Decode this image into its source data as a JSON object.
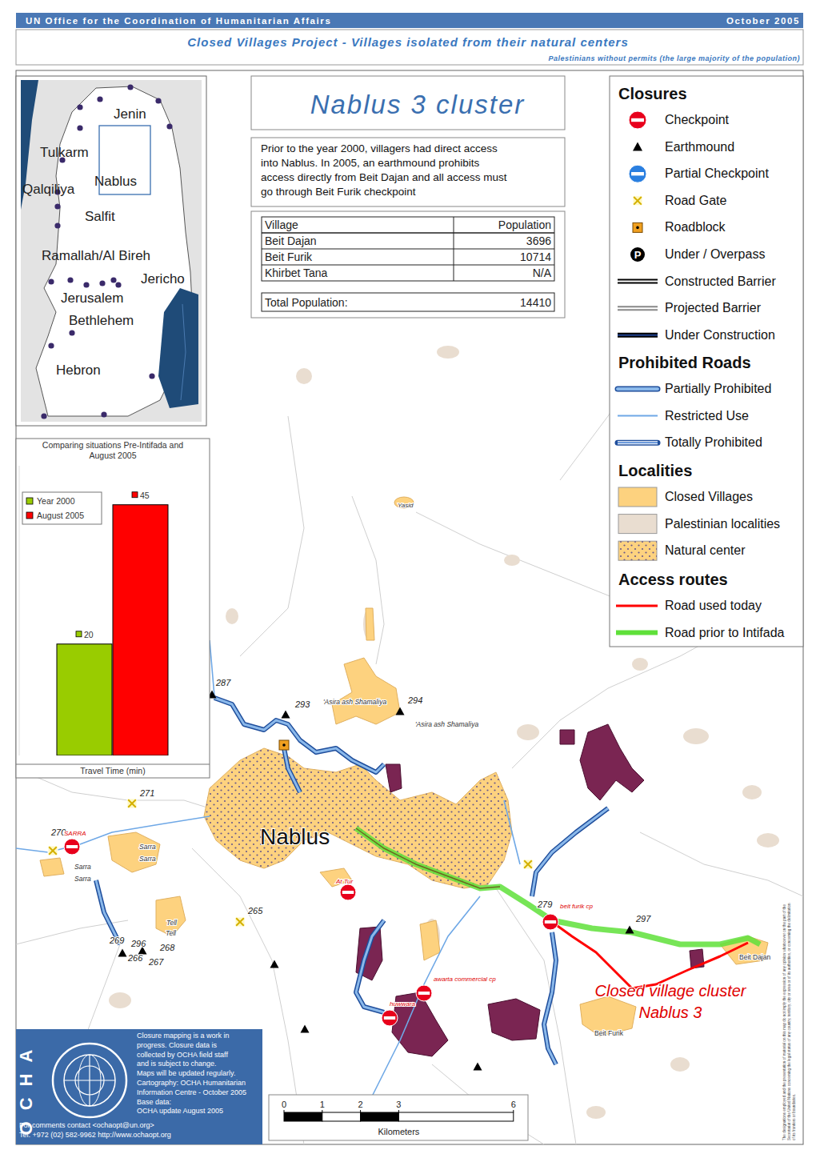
{
  "header": {
    "org": "UN Office for the Coordination of Humanitarian Affairs",
    "date": "October 2005",
    "title": "Closed Villages Project - Villages isolated from their natural centers",
    "subtitle": "Palestinians without permits (the large majority of the population)"
  },
  "inset_map": {
    "labels": [
      "Jenin",
      "Tulkarm",
      "Nablus",
      "Qalqiliya",
      "Salfit",
      "Ramallah/Al Bireh",
      "Jericho",
      "Jerusalem",
      "Bethlehem",
      "Hebron"
    ]
  },
  "panel": {
    "title": "Nablus 3 cluster",
    "description": [
      "Prior to the year 2000, villagers had direct access",
      "into Nablus. In 2005, an earthmound prohibits",
      "access directly from Beit Dajan and all access must",
      "go through Beit Furik checkpoint"
    ]
  },
  "table": {
    "columns": [
      "Village",
      "Population"
    ],
    "rows": [
      [
        "Beit Dajan",
        3696
      ],
      [
        "Beit Furik",
        10714
      ],
      [
        "Khirbet Tana",
        "N/A"
      ]
    ],
    "total": [
      "Total Population:",
      14410
    ]
  },
  "chart_data": {
    "type": "bar",
    "title": "Comparing situations Pre-Intifada and August 2005",
    "x_label": "Travel Time (min)",
    "categories": [
      null
    ],
    "series": [
      {
        "name": "Year 2000",
        "color": "#99cc00",
        "values": [
          20
        ]
      },
      {
        "name": "August 2005",
        "color": "#ff0000",
        "values": [
          45
        ]
      }
    ],
    "ylim": [
      0,
      52
    ],
    "tick_labels": false,
    "data_labels": true,
    "legend": "top-left",
    "grid": false
  },
  "legend": {
    "sections": [
      {
        "title": "Closures",
        "items": [
          "Checkpoint",
          "Earthmound",
          "Partial Checkpoint",
          "Road Gate",
          "Roadblock",
          "Under / Overpass",
          "Constructed Barrier",
          "Projected Barrier",
          "Under Construction"
        ]
      },
      {
        "title": "Prohibited Roads",
        "items": [
          "Partially Prohibited",
          "Restricted Use",
          "Totally Prohibited"
        ]
      },
      {
        "title": "Localities",
        "items": [
          "Closed Villages",
          "Palestinian localities",
          "Natural center"
        ]
      },
      {
        "title": "Access routes",
        "items": [
          "Road used today",
          "Road prior to Intifada"
        ]
      }
    ],
    "overpass_symbol": "P"
  },
  "map": {
    "labels": [
      "Yasid",
      "287",
      "293",
      "'Asira ash Shamaliya",
      "294",
      "'Asira ash Shamaliya",
      "271",
      "270",
      "SARRA",
      "Sarra",
      "Sarra",
      "Sarra",
      "Sarra",
      "Nablus",
      "At Tur",
      "279",
      "beit furik cp",
      "297",
      "265",
      "Tell",
      "Tell",
      "269",
      "296",
      "268",
      "266",
      "267",
      "awarta commercial cp",
      "huwwara",
      "Beit Dajan",
      "Beit Furik"
    ],
    "callout": [
      "Closed village cluster",
      "Nablus 3"
    ]
  },
  "scale_bar": {
    "ticks": [
      0,
      1,
      2,
      3,
      6
    ],
    "unit": "Kilometers"
  },
  "footer": {
    "logo_text": "OCHA",
    "notes": [
      "Closure mapping is a work in",
      "progress. Closure data is",
      "collected by OCHA field staff",
      "and is subject to change.",
      "Maps will be updated regularly.",
      "Cartography: OCHA Humanitarian",
      "Information Centre - October 2005",
      "Base data:",
      "OCHA update August 2005"
    ],
    "contact": [
      "For comments contact <ochaopt@un.org>",
      "Tel. +972 (02) 582-9962 http://www.ochaopt.org"
    ]
  },
  "disclaimer": [
    "The designations employed and the presentation of material on this map do not imply the expression of any opinion whatsoever on the part of the",
    "Secretariat of the United Nations concerning the legal status of any country, territory, city or area or of its authorities, or concerning the delimitation",
    "of its frontiers or boundaries."
  ]
}
